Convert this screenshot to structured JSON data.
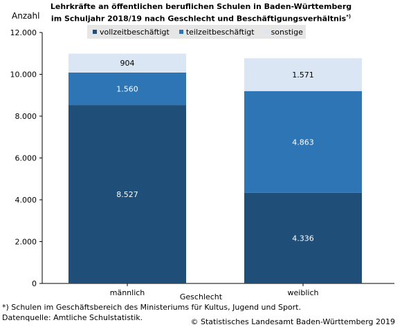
{
  "title_line1": "Lehrkräfte an öffentlichen beruflichen Schulen in Baden-Württemberg",
  "title_line2": "im Schuljahr 2018/19 nach Geschlecht und Beschäftigungsverhältnis",
  "title_sup": "*)",
  "y_unit": "Anzahl",
  "footnote": "*) Schulen im Geschäftsbereich des Ministeriums für Kultus, Jugend und Sport.",
  "source": "Datenquelle: Amtliche Schulstatistik.",
  "copyright": "© Statistisches Landesamt Baden-Württemberg 2019",
  "chart_data": {
    "type": "bar",
    "stacked": true,
    "categories": [
      "männlich",
      "weiblich"
    ],
    "xlabel": "Geschlecht",
    "ylabel": "Anzahl",
    "ylim": [
      0,
      12000
    ],
    "yticks": [
      0,
      2000,
      4000,
      6000,
      8000,
      10000,
      12000
    ],
    "ytick_labels": [
      "0",
      "2.000",
      "4.000",
      "6.000",
      "8.000",
      "10.000",
      "12.000"
    ],
    "grid": false,
    "legend_position": "top",
    "series": [
      {
        "name": "vollzeitbeschäftigt",
        "values": [
          8527,
          4336
        ],
        "labels": [
          "8.527",
          "4.336"
        ],
        "color": "#1f4e79",
        "label_color": "#ffffff"
      },
      {
        "name": "teilzeitbeschäftigt",
        "values": [
          1560,
          4863
        ],
        "labels": [
          "1.560",
          "4.863"
        ],
        "color": "#2e75b6",
        "label_color": "#ffffff"
      },
      {
        "name": "sonstige",
        "values": [
          904,
          1571
        ],
        "labels": [
          "904",
          "1.571"
        ],
        "color": "#dae6f3",
        "label_color": "#000000"
      }
    ]
  }
}
